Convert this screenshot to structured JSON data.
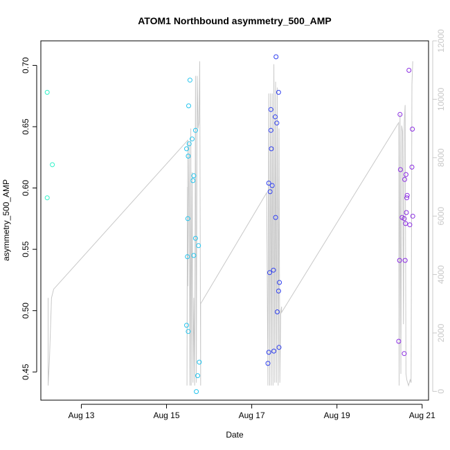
{
  "chart_data": {
    "type": "scatter",
    "title": "ATOM1 Northbound asymmetry_500_AMP",
    "xlabel": "Date",
    "ylabel": "asymmetry_500_AMP",
    "xlim": [
      12.05,
      21.15
    ],
    "ylim": [
      0.427,
      0.72
    ],
    "y2lim": [
      -300,
      12000
    ],
    "x_ticks": [
      {
        "value": 13,
        "label": "Aug 13"
      },
      {
        "value": 15,
        "label": "Aug 15"
      },
      {
        "value": 17,
        "label": "Aug 17"
      },
      {
        "value": 19,
        "label": "Aug 19"
      },
      {
        "value": 21,
        "label": "Aug 21"
      }
    ],
    "y_ticks": [
      {
        "value": 0.45,
        "label": "0.45"
      },
      {
        "value": 0.5,
        "label": "0.50"
      },
      {
        "value": 0.55,
        "label": "0.55"
      },
      {
        "value": 0.6,
        "label": "0.60"
      },
      {
        "value": 0.65,
        "label": "0.65"
      },
      {
        "value": 0.7,
        "label": "0.70"
      }
    ],
    "y2_ticks": [
      {
        "value": 0,
        "label": "0"
      },
      {
        "value": 2000,
        "label": "2000"
      },
      {
        "value": 4000,
        "label": "4000"
      },
      {
        "value": 6000,
        "label": "6000"
      },
      {
        "value": 8000,
        "label": "8000"
      },
      {
        "value": 10000,
        "label": "10000"
      },
      {
        "value": 12000,
        "label": "12000"
      }
    ],
    "colors": {
      "s1": "#2ef2c8",
      "s2": "#22c4ee",
      "s3": "#2e3ef0",
      "s4": "#8a2be2",
      "line": "#c8c8c8",
      "axis": "#000000"
    },
    "series": [
      {
        "name": "s1",
        "color_key": "s1",
        "points": [
          [
            12.2,
            0.678
          ],
          [
            12.32,
            0.619
          ],
          [
            12.2,
            0.592
          ]
        ]
      },
      {
        "name": "s2",
        "color_key": "s2",
        "points": [
          [
            15.55,
            0.688
          ],
          [
            15.52,
            0.667
          ],
          [
            15.68,
            0.647
          ],
          [
            15.6,
            0.64
          ],
          [
            15.53,
            0.636
          ],
          [
            15.47,
            0.632
          ],
          [
            15.51,
            0.626
          ],
          [
            15.64,
            0.61
          ],
          [
            15.62,
            0.606
          ],
          [
            15.5,
            0.575
          ],
          [
            15.68,
            0.559
          ],
          [
            15.75,
            0.553
          ],
          [
            15.49,
            0.544
          ],
          [
            15.64,
            0.545
          ],
          [
            15.47,
            0.488
          ],
          [
            15.51,
            0.483
          ],
          [
            15.77,
            0.458
          ],
          [
            15.73,
            0.447
          ],
          [
            15.7,
            0.434
          ]
        ]
      },
      {
        "name": "s3",
        "color_key": "s3",
        "points": [
          [
            17.57,
            0.707
          ],
          [
            17.63,
            0.678
          ],
          [
            17.45,
            0.664
          ],
          [
            17.55,
            0.658
          ],
          [
            17.59,
            0.653
          ],
          [
            17.45,
            0.647
          ],
          [
            17.46,
            0.632
          ],
          [
            17.4,
            0.604
          ],
          [
            17.48,
            0.602
          ],
          [
            17.43,
            0.597
          ],
          [
            17.56,
            0.576
          ],
          [
            17.42,
            0.531
          ],
          [
            17.51,
            0.533
          ],
          [
            17.65,
            0.523
          ],
          [
            17.63,
            0.516
          ],
          [
            17.6,
            0.499
          ],
          [
            17.4,
            0.466
          ],
          [
            17.52,
            0.467
          ],
          [
            17.64,
            0.47
          ],
          [
            17.38,
            0.457
          ]
        ]
      },
      {
        "name": "s4",
        "color_key": "s4",
        "points": [
          [
            20.69,
            0.696
          ],
          [
            20.48,
            0.66
          ],
          [
            20.77,
            0.648
          ],
          [
            20.49,
            0.615
          ],
          [
            20.76,
            0.617
          ],
          [
            20.62,
            0.611
          ],
          [
            20.59,
            0.607
          ],
          [
            20.65,
            0.594
          ],
          [
            20.64,
            0.592
          ],
          [
            20.63,
            0.58
          ],
          [
            20.53,
            0.576
          ],
          [
            20.58,
            0.575
          ],
          [
            20.78,
            0.577
          ],
          [
            20.61,
            0.571
          ],
          [
            20.71,
            0.57
          ],
          [
            20.47,
            0.541
          ],
          [
            20.6,
            0.541
          ],
          [
            20.45,
            0.475
          ],
          [
            20.58,
            0.465
          ]
        ]
      }
    ],
    "line_series": {
      "name": "secondary",
      "axis": "right",
      "x": [
        12.22,
        12.22,
        12.25,
        12.3,
        12.35,
        15.5,
        15.48,
        15.49,
        15.5,
        15.52,
        15.53,
        15.55,
        15.57,
        15.58,
        15.6,
        15.62,
        15.64,
        15.66,
        15.68,
        15.7,
        15.72,
        15.74,
        15.76,
        15.78,
        15.8,
        15.8,
        17.35,
        17.38,
        17.4,
        17.42,
        17.44,
        17.46,
        17.48,
        17.5,
        17.52,
        17.54,
        17.56,
        17.58,
        17.6,
        17.62,
        17.64,
        17.66,
        17.68,
        17.7,
        17.7,
        20.45,
        20.46,
        20.48,
        20.5,
        20.52,
        20.54,
        20.56,
        20.58,
        20.6,
        20.62,
        20.64,
        20.66,
        20.68,
        20.7,
        20.72,
        20.74,
        20.76,
        20.78
      ],
      "y": [
        3200,
        200,
        1000,
        3200,
        3500,
        8600,
        200,
        7000,
        3600,
        7000,
        8500,
        200,
        9000,
        200,
        7500,
        300,
        3200,
        200,
        10800,
        300,
        10800,
        9000,
        9200,
        11300,
        200,
        3000,
        6800,
        200,
        10200,
        200,
        10200,
        200,
        10200,
        200,
        11200,
        300,
        10600,
        300,
        10400,
        200,
        9000,
        300,
        2700,
        2900,
        2700,
        9200,
        200,
        9500,
        600,
        9100,
        8900,
        2300,
        9200,
        9800,
        600,
        400,
        300,
        200,
        300,
        400,
        300,
        10500,
        11300
      ]
    }
  }
}
